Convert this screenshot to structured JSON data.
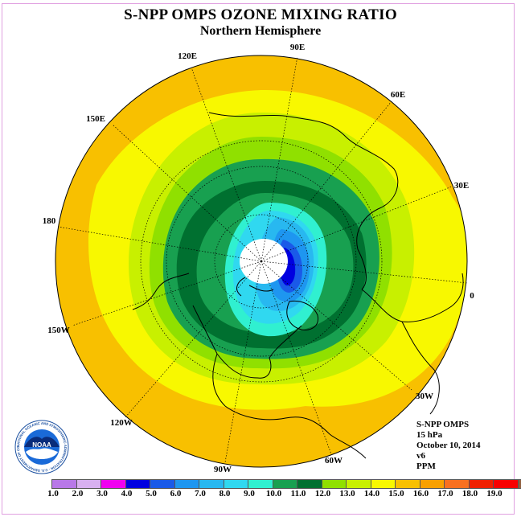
{
  "title": "S-NPP OMPS OZONE MIXING RATIO",
  "subtitle": "Northern Hemisphere",
  "longitude_labels": [
    {
      "key": "90E",
      "text": "90E"
    },
    {
      "key": "60E",
      "text": "60E"
    },
    {
      "key": "30E",
      "text": "30E"
    },
    {
      "key": "0",
      "text": "0"
    },
    {
      "key": "30W",
      "text": "30W"
    },
    {
      "key": "60W",
      "text": "60W"
    },
    {
      "key": "90W",
      "text": "90W"
    },
    {
      "key": "120W",
      "text": "120W"
    },
    {
      "key": "150W",
      "text": "150W"
    },
    {
      "key": "180",
      "text": "180"
    },
    {
      "key": "150E",
      "text": "150E"
    },
    {
      "key": "120E",
      "text": "120E"
    }
  ],
  "info": {
    "instrument": "S-NPP OMPS",
    "level": "15 hPa",
    "date": "October 10, 2014",
    "version": "v6",
    "units": "PPM"
  },
  "logo": {
    "text": "NOAA",
    "ring_text": "NATIONAL OCEANIC AND ATMOSPHERIC ADMINISTRATION · U.S. DEPARTMENT OF COMMERCE"
  },
  "colorbar": {
    "ticks": [
      "1.0",
      "2.0",
      "3.0",
      "4.0",
      "5.0",
      "6.0",
      "7.0",
      "8.0",
      "9.0",
      "10.0",
      "11.0",
      "12.0",
      "13.0",
      "14.0",
      "15.0",
      "16.0",
      "17.0",
      "18.0",
      "19.0"
    ],
    "colors": [
      "#b878e8",
      "#d8b0f0",
      "#f000f0",
      "#0000e0",
      "#1a5ae8",
      "#1e96f0",
      "#28b8f0",
      "#30d8f0",
      "#30f0d0",
      "#18a050",
      "#007030",
      "#90e000",
      "#c8f000",
      "#f8f800",
      "#f8c000",
      "#f8a000",
      "#f87020",
      "#f02000",
      "#f80000",
      "#906040"
    ]
  },
  "map": {
    "colors": {
      "outer": "#f8c000",
      "ring14": "#f8f800",
      "ring13": "#c8f000",
      "ring12": "#90e000",
      "ring10": "#18a050",
      "ring11": "#007030",
      "ring9": "#30f0d0",
      "ring8": "#30d8f0",
      "ring7": "#28b8f0",
      "ring6": "#1e96f0",
      "ring5": "#1a5ae8",
      "ring4": "#0000e0",
      "nodata": "#ffffff"
    }
  }
}
